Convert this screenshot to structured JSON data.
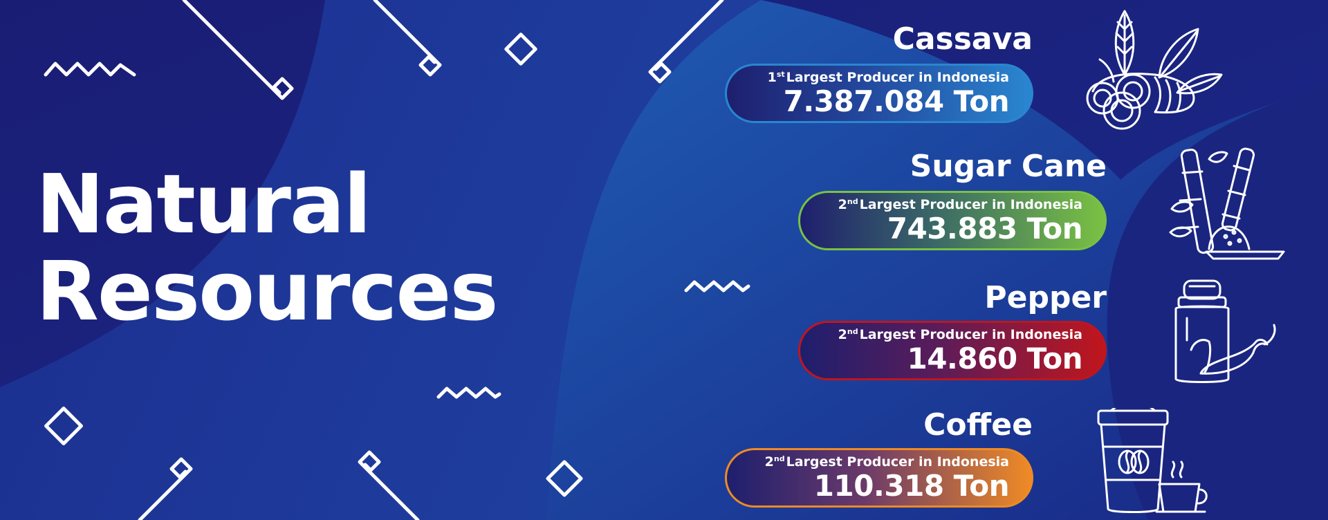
{
  "banner": {
    "title_line1": "Natural",
    "title_line2": "Resources"
  },
  "items": [
    {
      "name": "Cassava",
      "rank_number": "1",
      "rank_suffix": "st",
      "rank_text": "Largest Producer in Indonesia",
      "amount": "7.387.084 Ton",
      "accent_color": "#2a86d0",
      "icon": "cassava-icon"
    },
    {
      "name": "Sugar Cane",
      "rank_number": "2",
      "rank_suffix": "nd",
      "rank_text": "Largest Producer in Indonesia",
      "amount": "743.883 Ton",
      "accent_color": "#7ac143",
      "icon": "sugar-cane-icon"
    },
    {
      "name": "Pepper",
      "rank_number": "2",
      "rank_suffix": "nd",
      "rank_text": "Largest Producer in Indonesia",
      "amount": "14.860 Ton",
      "accent_color": "#c0161d",
      "icon": "pepper-icon"
    },
    {
      "name": "Coffee",
      "rank_number": "2",
      "rank_suffix": "nd",
      "rank_text": "Largest Producer in Indonesia",
      "amount": "110.318 Ton",
      "accent_color": "#ef8a25",
      "icon": "coffee-icon"
    }
  ],
  "colors": {
    "background_dark": "#1a1f78",
    "background_mid": "#1e3a9e",
    "wave_light": "#1f58b0",
    "text": "#ffffff"
  }
}
